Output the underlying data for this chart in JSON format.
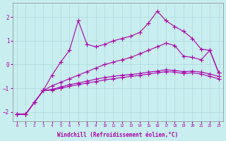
{
  "bg_color": "#c8eef0",
  "grid_color": "#b0d8dc",
  "line_color": "#aa00aa",
  "xlabel": "Windchill (Refroidissement éolien,°C)",
  "xlim": [
    -0.5,
    23.5
  ],
  "ylim": [
    -2.4,
    2.6
  ],
  "xticks": [
    0,
    1,
    2,
    3,
    4,
    5,
    6,
    7,
    8,
    9,
    10,
    11,
    12,
    13,
    14,
    15,
    16,
    17,
    18,
    19,
    20,
    21,
    22,
    23
  ],
  "yticks": [
    -2,
    -1,
    0,
    1,
    2
  ],
  "line_wiggly": [
    -2.1,
    -2.1,
    -1.6,
    -1.1,
    -0.45,
    0.1,
    0.6,
    1.85,
    0.85,
    0.75,
    0.85,
    1.0,
    1.1,
    1.2,
    1.35,
    1.75,
    2.25,
    1.85,
    1.6,
    1.4,
    1.1,
    0.65,
    0.6,
    -0.35
  ],
  "line_upper": [
    -2.1,
    -2.1,
    -1.6,
    -1.1,
    -0.9,
    -0.75,
    -0.6,
    -0.45,
    -0.3,
    -0.15,
    0.0,
    0.1,
    0.2,
    0.3,
    0.45,
    0.6,
    0.75,
    0.9,
    0.8,
    0.35,
    0.3,
    0.2,
    0.6,
    -0.35
  ],
  "line_mid": [
    -2.1,
    -2.1,
    -1.6,
    -1.1,
    -1.05,
    -0.95,
    -0.85,
    -0.78,
    -0.7,
    -0.62,
    -0.55,
    -0.5,
    -0.45,
    -0.42,
    -0.38,
    -0.32,
    -0.28,
    -0.22,
    -0.25,
    -0.3,
    -0.28,
    -0.32,
    -0.4,
    -0.5
  ],
  "line_lower": [
    -2.1,
    -2.1,
    -1.6,
    -1.1,
    -1.08,
    -1.0,
    -0.92,
    -0.85,
    -0.78,
    -0.72,
    -0.65,
    -0.6,
    -0.55,
    -0.5,
    -0.46,
    -0.4,
    -0.35,
    -0.3,
    -0.32,
    -0.38,
    -0.35,
    -0.4,
    -0.5,
    -0.6
  ]
}
